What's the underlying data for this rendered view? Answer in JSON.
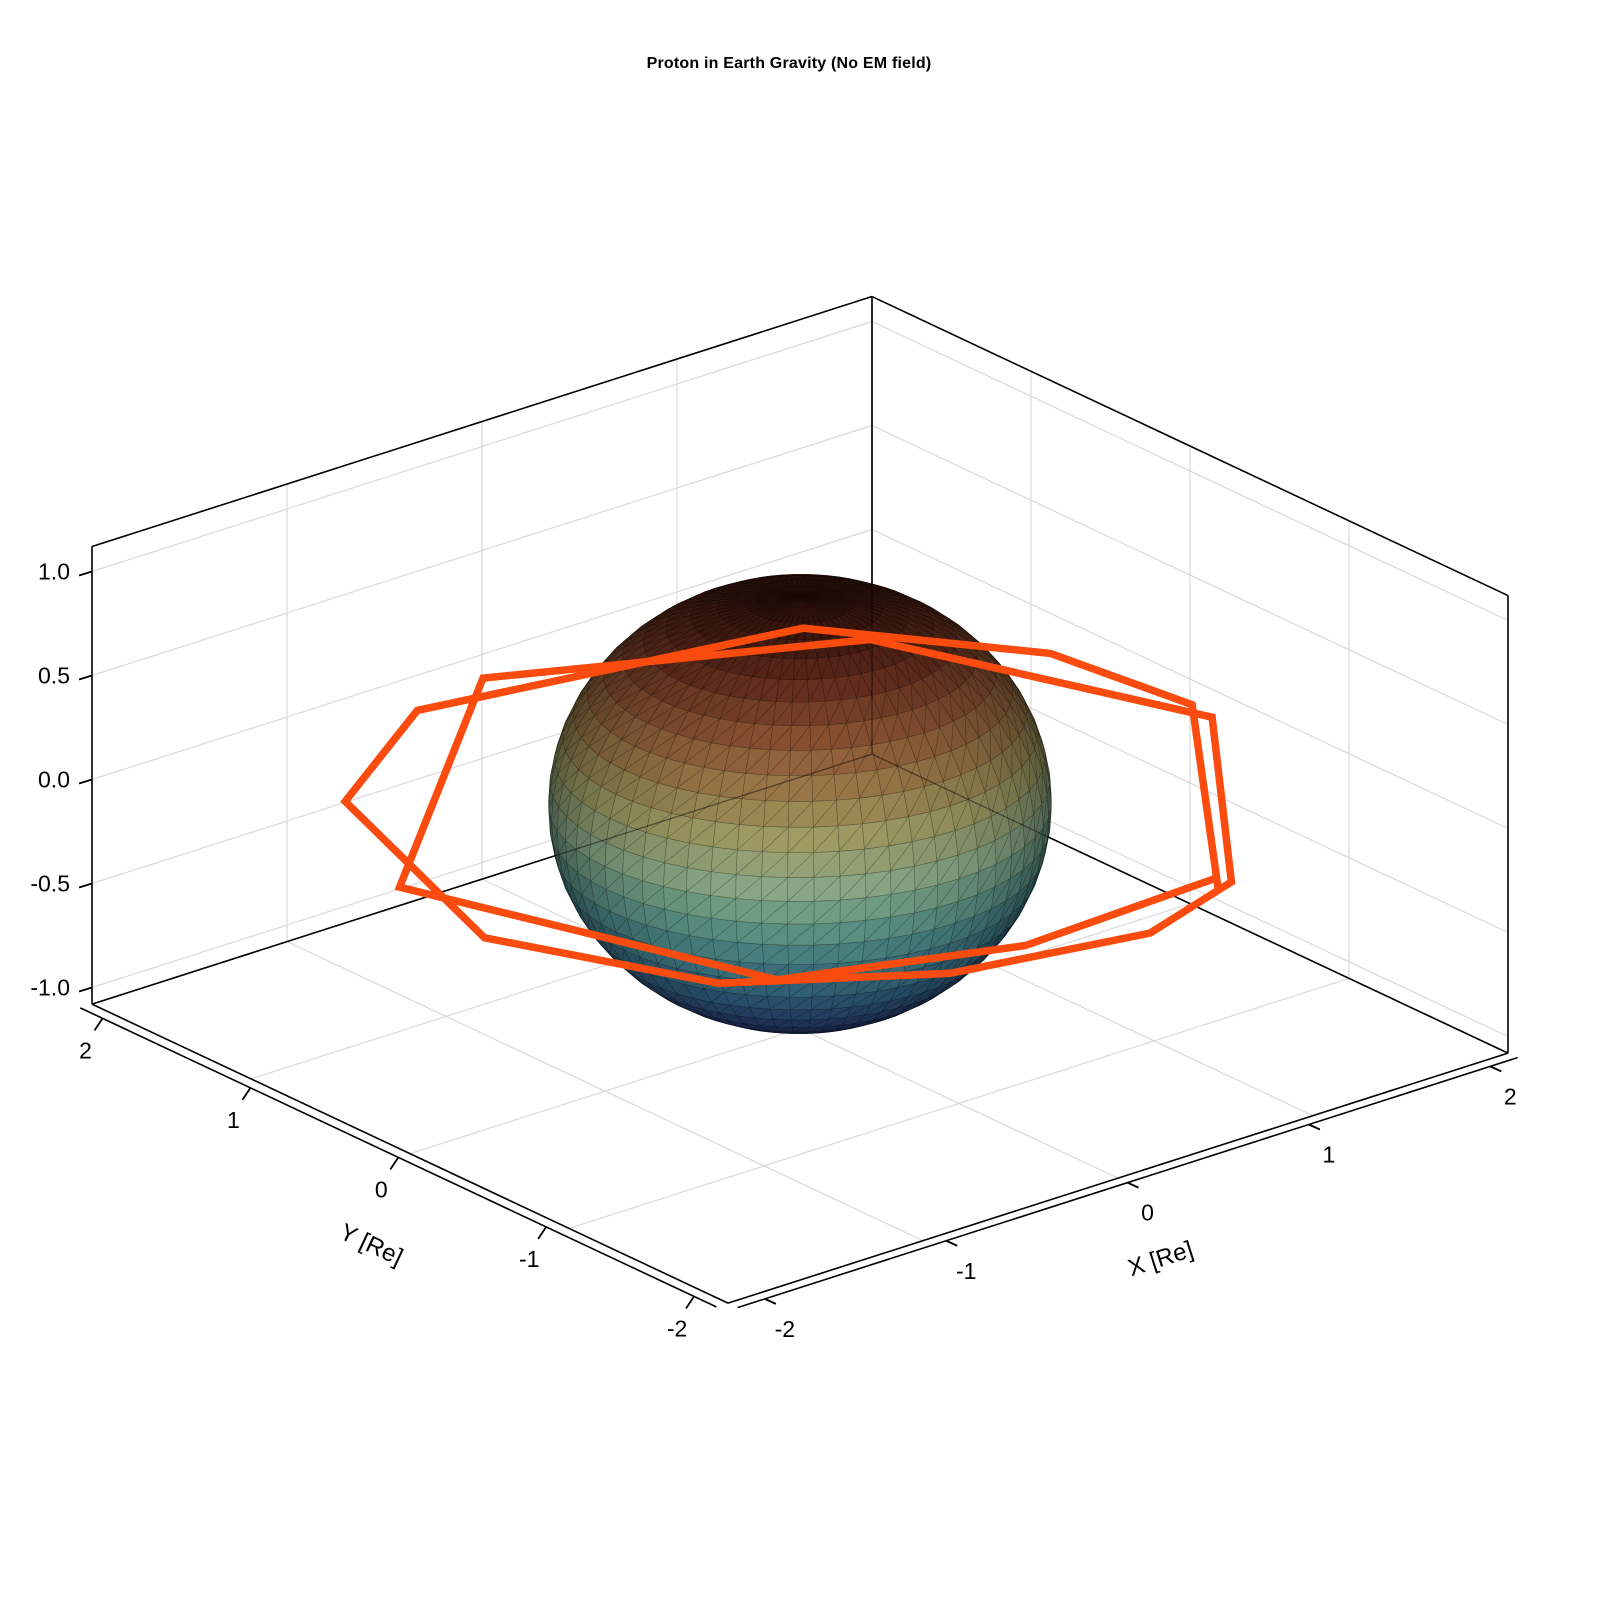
{
  "title": "Proton in Earth Gravity (No EM field)",
  "colors": {
    "background": "#FFFFFF",
    "box_edge": "#000000",
    "grid": "#D9D9D9",
    "interior_edge_over_sphere": "rgba(0,0,0,0.45)",
    "tick_text": "#000000",
    "orbit": "#FB4B0F"
  },
  "chart_data": {
    "type": "line",
    "projection": "3d-orthographic",
    "title": "Proton in Earth Gravity (No EM field)",
    "xlabel": "X [Re]",
    "ylabel": "Y [Re]",
    "zlabel": "",
    "xlim": [
      -2,
      2
    ],
    "ylim": [
      -2,
      2
    ],
    "zlim": [
      -1.08,
      1.12
    ],
    "xticks": [
      -2,
      -1,
      0,
      1,
      2
    ],
    "yticks": [
      -2,
      -1,
      0,
      1,
      2
    ],
    "zticks": [
      -1,
      -0.5,
      0,
      0.5,
      1
    ],
    "xtick_labels": [
      "-2",
      "-1",
      "0",
      "1",
      "2"
    ],
    "ytick_labels": [
      "2",
      "1",
      "0",
      "-1",
      "-2"
    ],
    "ztick_labels": [
      "-1.0",
      "-0.5",
      "0.0",
      "0.5",
      "1.0"
    ],
    "grid": true,
    "legend": "none",
    "earth_sphere": {
      "name": "Earth",
      "center": [
        0,
        0,
        0
      ],
      "radius": 1,
      "mesh": [
        60,
        28
      ],
      "colormap_stops": [
        [
          -1.0,
          "#2b3280"
        ],
        [
          -0.8,
          "#2f4c8c"
        ],
        [
          -0.55,
          "#3a7295"
        ],
        [
          -0.3,
          "#4f9194"
        ],
        [
          -0.1,
          "#6fa78f"
        ],
        [
          0.06,
          "#90ae8b"
        ],
        [
          0.28,
          "#9f9c63"
        ],
        [
          0.48,
          "#997747"
        ],
        [
          0.64,
          "#8e5634"
        ],
        [
          0.82,
          "#6c3120"
        ],
        [
          1.0,
          "#3d150c"
        ]
      ]
    },
    "trajectory": {
      "name": "proton trajectory",
      "color": "#FB4B0F",
      "line_width": 7.5,
      "units": "Re",
      "points": [
        [
          0.74,
          -1.72,
          0
        ],
        [
          1.84,
          -0.21,
          0
        ],
        [
          1.74,
          0.56,
          0
        ],
        [
          1.15,
          1.39,
          0
        ],
        [
          -0.56,
          1.72,
          0
        ],
        [
          -1.37,
          1.18,
          0
        ],
        [
          -1.83,
          -0.26,
          0
        ],
        [
          -1.41,
          -1.22,
          0
        ],
        [
          -0.64,
          -1.73,
          0
        ],
        [
          0.23,
          -1.92,
          0
        ],
        [
          0.81,
          -1.72,
          0
        ],
        [
          1.82,
          -0.36,
          0
        ],
        [
          1.28,
          1.13,
          0
        ],
        [
          -0.15,
          1.81,
          0
        ],
        [
          -1.76,
          0.36,
          0
        ],
        [
          -1.21,
          -1.34,
          0
        ],
        [
          -0.23,
          -1.7,
          0
        ],
        [
          0.79,
          -1.65,
          0
        ]
      ]
    }
  }
}
